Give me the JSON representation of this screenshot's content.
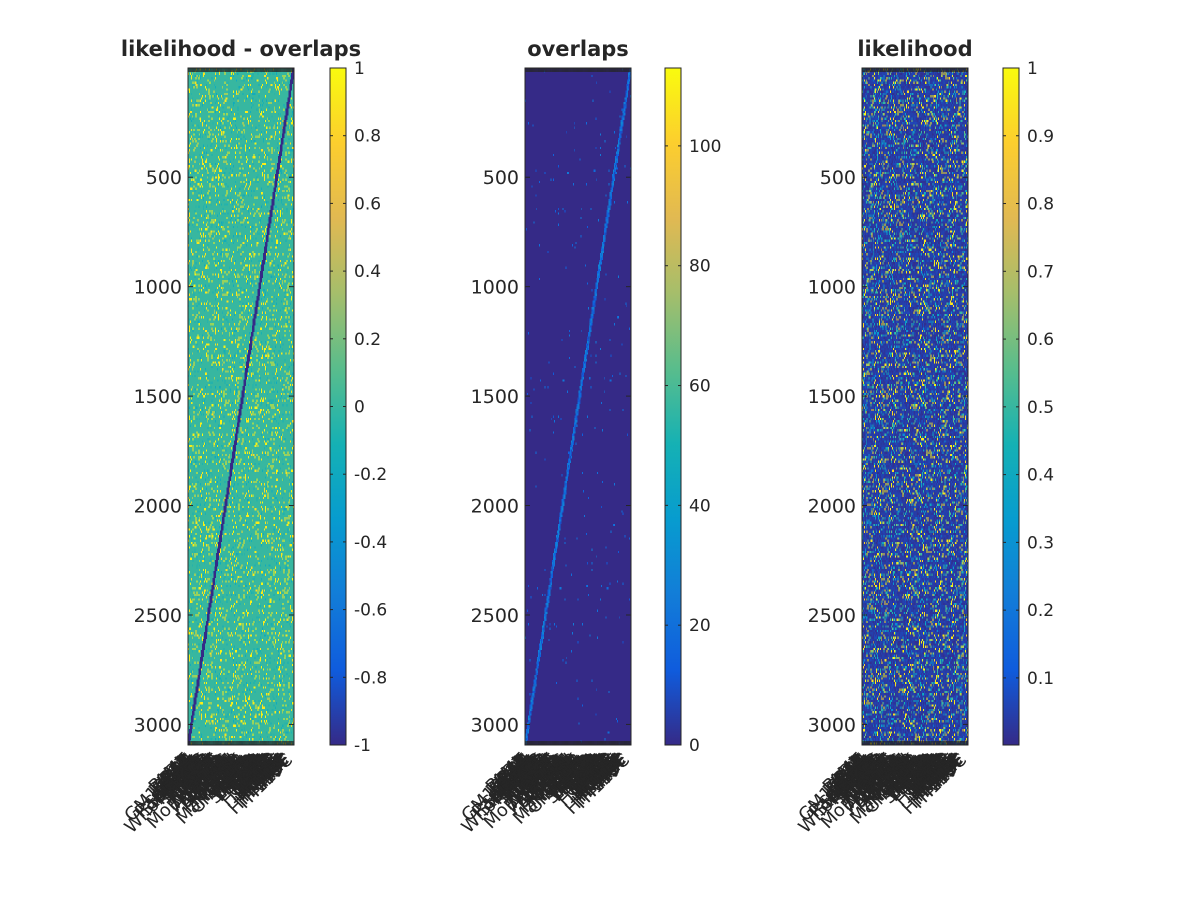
{
  "chart_data": [
    {
      "type": "heatmap",
      "title": "likelihood - overlaps",
      "colormap": "parula",
      "y_ticks": [
        500,
        1000,
        1500,
        2000,
        2500,
        3000
      ],
      "ylim": [
        1,
        3094
      ],
      "x_tick_labels": [
        "Bone",
        "AML",
        "RA",
        "RAT",
        "Blood",
        "GM12878",
        "HEK",
        "HESC",
        "K562",
        "Liver",
        "Lung",
        "Other",
        "Pancreas",
        "Skin",
        "Smooth",
        "Spleen",
        "Stomach",
        "Testis",
        "WholeBrain",
        "HTEC",
        "HUVEC",
        "NHEK",
        "H1",
        "H9",
        "HeLa",
        "iPS",
        "HMEC",
        "HSMM",
        "Muscle",
        "HAEC",
        "Kidney",
        "Ovary",
        "HFF",
        "HCT",
        "NHLF",
        "IMR90",
        "MCF",
        "Monocytes",
        "Stem",
        "Brain",
        "Heart",
        "Thymus",
        "HepG2",
        "Adipose",
        "A549",
        "HSC",
        "Colon",
        "Breast",
        "Placenta",
        "Tcells",
        "HUES",
        "Adrenal",
        "Bcells",
        "Cortex",
        "Fetal",
        "Esoph",
        "Intest",
        "HIPP",
        "Prostate",
        "Uterus",
        "NK",
        "CD14",
        "CD4",
        "CD8",
        "Mammary",
        "Neuron",
        "Astro",
        "Osteo",
        "Chondro",
        "Myo",
        "Kerat",
        "Fibro",
        "Epith",
        "Endo",
        "HL60",
        "Jurkat",
        "Caco2",
        "SKNSH",
        "PC3",
        "LNCaP",
        "HEPG",
        "U2OS",
        "BJ",
        "WI38",
        "Th1",
        "Th2",
        "Th17",
        "Treg",
        "NH",
        "AG04",
        "GM12",
        "HRE",
        "SAEC",
        "HBMEC",
        "HCM",
        "HCPE",
        "HPAF",
        "HRPE",
        "HVMF",
        "WERI",
        "BE2C",
        "Caco",
        "HCFaa",
        "HPF",
        "HAc",
        "HA-sp",
        "HBM",
        "HCF",
        "HConF",
        "HEEpiC",
        "HFF-Myc",
        "HGF",
        "HMF",
        "NHDF",
        "TH1E5C"
      ],
      "colorbar": {
        "ticks": [
          -1,
          -0.8,
          -0.6,
          -0.4,
          -0.2,
          0,
          0.2,
          0.4,
          0.6,
          0.8,
          1
        ],
        "clim": [
          -1,
          1
        ]
      }
    },
    {
      "type": "heatmap",
      "title": "overlaps",
      "colormap": "parula",
      "y_ticks": [
        500,
        1000,
        1500,
        2000,
        2500,
        3000
      ],
      "ylim": [
        1,
        3094
      ],
      "x_tick_labels": [
        "Bone",
        "AML",
        "RA",
        "RAT",
        "Blood",
        "GM12878",
        "HEK",
        "HESC",
        "K562",
        "Liver",
        "Lung",
        "Other",
        "Pancreas",
        "Skin",
        "Smooth",
        "Spleen",
        "Stomach",
        "Testis",
        "WholeBrain",
        "HTEC",
        "HUVEC",
        "NHEK",
        "H1",
        "H9",
        "HeLa",
        "iPS",
        "HMEC",
        "HSMM",
        "Muscle",
        "HAEC",
        "Kidney",
        "Ovary",
        "HFF",
        "HCT",
        "NHLF",
        "IMR90",
        "MCF",
        "Monocytes",
        "Stem",
        "Brain",
        "Heart",
        "Thymus",
        "HepG2",
        "Adipose",
        "A549",
        "HSC",
        "Colon",
        "Breast",
        "Placenta",
        "Tcells",
        "HUES",
        "Adrenal",
        "Bcells",
        "Cortex",
        "Fetal",
        "Esoph",
        "Intest",
        "HIPP",
        "Prostate",
        "Uterus",
        "NK",
        "CD14",
        "CD4",
        "CD8",
        "Mammary",
        "Neuron",
        "Astro",
        "Osteo",
        "Chondro",
        "Myo",
        "Kerat",
        "Fibro",
        "Epith",
        "Endo",
        "HL60",
        "Jurkat",
        "Caco2",
        "SKNSH",
        "PC3",
        "LNCaP",
        "HEPG",
        "U2OS",
        "BJ",
        "WI38",
        "Th1",
        "Th2",
        "Th17",
        "Treg",
        "NH",
        "AG04",
        "GM12",
        "HRE",
        "SAEC",
        "HBMEC",
        "HCM",
        "HCPE",
        "HPAF",
        "HRPE",
        "HVMF",
        "WERI",
        "BE2C",
        "Caco",
        "HCFaa",
        "HPF",
        "HAc",
        "HA-sp",
        "HBM",
        "HCF",
        "HConF",
        "HEEpiC",
        "HFF-Myc",
        "HGF",
        "HMF",
        "NHDF",
        "TH1E5C"
      ],
      "colorbar": {
        "ticks": [
          0,
          20,
          40,
          60,
          80,
          100
        ],
        "clim": [
          0,
          113
        ]
      }
    },
    {
      "type": "heatmap",
      "title": "likelihood",
      "colormap": "parula",
      "y_ticks": [
        500,
        1000,
        1500,
        2000,
        2500,
        3000
      ],
      "ylim": [
        1,
        3094
      ],
      "x_tick_labels": [
        "Bone",
        "AML",
        "RA",
        "RAT",
        "Blood",
        "GM12878",
        "HEK",
        "HESC",
        "K562",
        "Liver",
        "Lung",
        "Other",
        "Pancreas",
        "Skin",
        "Smooth",
        "Spleen",
        "Stomach",
        "Testis",
        "WholeBrain",
        "HTEC",
        "HUVEC",
        "NHEK",
        "H1",
        "H9",
        "HeLa",
        "iPS",
        "HMEC",
        "HSMM",
        "Muscle",
        "HAEC",
        "Kidney",
        "Ovary",
        "HFF",
        "HCT",
        "NHLF",
        "IMR90",
        "MCF",
        "Monocytes",
        "Stem",
        "Brain",
        "Heart",
        "Thymus",
        "HepG2",
        "Adipose",
        "A549",
        "HSC",
        "Colon",
        "Breast",
        "Placenta",
        "Tcells",
        "HUES",
        "Adrenal",
        "Bcells",
        "Cortex",
        "Fetal",
        "Esoph",
        "Intest",
        "HIPP",
        "Prostate",
        "Uterus",
        "NK",
        "CD14",
        "CD4",
        "CD8",
        "Mammary",
        "Neuron",
        "Astro",
        "Osteo",
        "Chondro",
        "Myo",
        "Kerat",
        "Fibro",
        "Epith",
        "Endo",
        "HL60",
        "Jurkat",
        "Caco2",
        "SKNSH",
        "PC3",
        "LNCaP",
        "HEPG",
        "U2OS",
        "BJ",
        "WI38",
        "Th1",
        "Th2",
        "Th17",
        "Treg",
        "NH",
        "AG04",
        "GM12",
        "HRE",
        "SAEC",
        "HBMEC",
        "HCM",
        "HCPE",
        "HPAF",
        "HRPE",
        "HVMF",
        "WERI",
        "BE2C",
        "Caco",
        "HCFaa",
        "HPF",
        "HAc",
        "HA-sp",
        "HBM",
        "HCF",
        "HConF",
        "HEEpiC",
        "HFF-Myc",
        "HGF",
        "HMF",
        "NHDF",
        "TH1E5C"
      ],
      "colorbar": {
        "ticks": [
          0.1,
          0.2,
          0.3,
          0.4,
          0.5,
          0.6,
          0.7,
          0.8,
          0.9,
          1
        ],
        "clim": [
          0.001,
          1
        ]
      }
    }
  ]
}
